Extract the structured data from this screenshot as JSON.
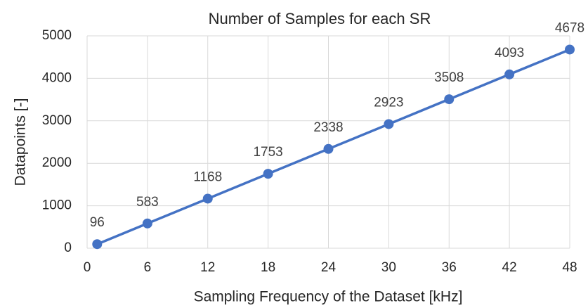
{
  "chart_data": {
    "type": "line",
    "title": "Number of Samples for each SR",
    "x_label": "Sampling Frequency of the Dataset [kHz]",
    "y_label": "Datapoints [-]",
    "x": [
      1,
      6,
      12,
      18,
      24,
      30,
      36,
      42,
      48
    ],
    "series": [
      {
        "name": "Datapoints",
        "color": "#4472c4",
        "values": [
          96,
          583,
          1168,
          1753,
          2338,
          2923,
          3508,
          4093,
          4678
        ]
      }
    ],
    "xlim": [
      0,
      48
    ],
    "xticks": [
      0,
      6,
      12,
      18,
      24,
      30,
      36,
      42,
      48
    ],
    "ylim": [
      0,
      5000
    ],
    "yticks": [
      0,
      1000,
      2000,
      3000,
      4000,
      5000
    ],
    "grid": true,
    "data_labels": true
  }
}
